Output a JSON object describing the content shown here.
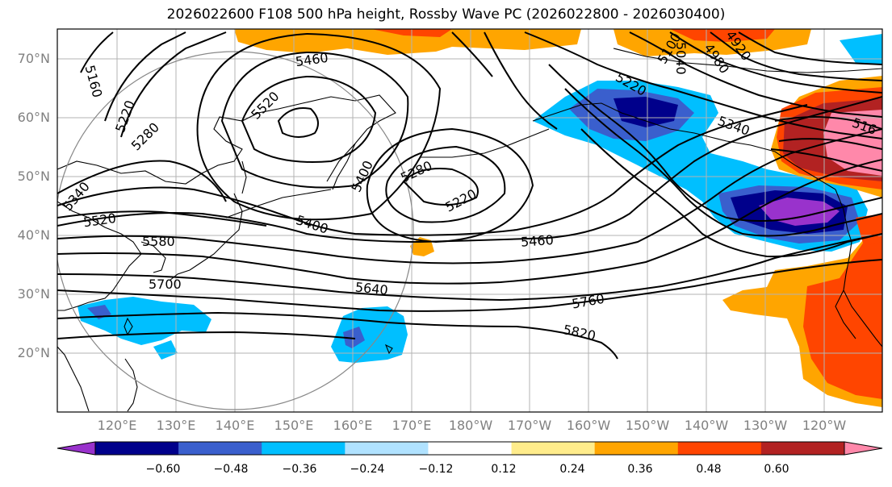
{
  "title": "2026022600 F108 500 hPa height, Rossby Wave PC (2026022800 - 2026030400)",
  "lat_labels": [
    "70°N",
    "60°N",
    "50°N",
    "40°N",
    "30°N",
    "20°N"
  ],
  "lon_labels": [
    "120°E",
    "130°E",
    "140°E",
    "150°E",
    "160°E",
    "170°E",
    "180°W",
    "170°W",
    "160°W",
    "150°W",
    "140°W",
    "130°W",
    "120°W"
  ],
  "contour_labels": [
    "5460",
    "5520",
    "5160",
    "5220",
    "5280",
    "5400",
    "5280",
    "5220",
    "5340",
    "5520",
    "5580",
    "5400",
    "5460",
    "5700",
    "5640",
    "5760",
    "5820",
    "5220",
    "5100",
    "5040",
    "4980",
    "4920",
    "5340",
    "516"
  ],
  "colorbar": {
    "ticks": [
      "−0.60",
      "−0.48",
      "−0.36",
      "−0.24",
      "−0.12",
      "0.12",
      "0.24",
      "0.36",
      "0.48",
      "0.60"
    ],
    "colors": [
      "#9932CC",
      "#00008B",
      "#3A5FCD",
      "#00BFFF",
      "#B0E2FF",
      "#FFFFFF",
      "#FFEC8B",
      "#FFA500",
      "#FF4500",
      "#B22222",
      "#FF88AA"
    ]
  },
  "shading_colors": {
    "neg_light": "#00BFFF",
    "neg_mid": "#3A5FCD",
    "neg_dark": "#00008B",
    "neg_min": "#9932CC",
    "pos_light": "#FFA500",
    "pos_mid": "#FF4500",
    "pos_dark": "#B22222",
    "pos_max": "#FF88AA",
    "pos_faint": "#FFEC8B"
  }
}
